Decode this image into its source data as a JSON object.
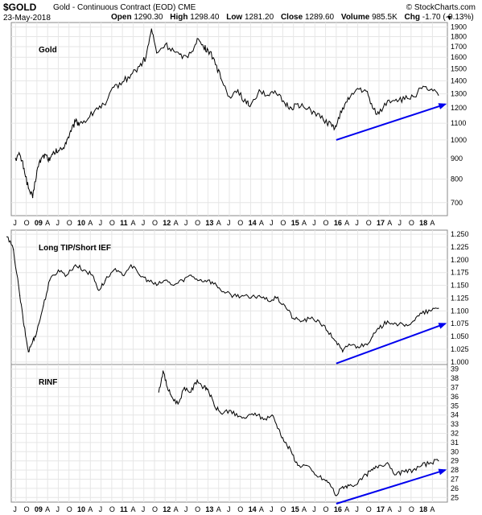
{
  "header": {
    "symbol": "$GOLD",
    "description": "Gold - Continuous Contract (EOD)",
    "exchange": "CME",
    "brand": "© StockCharts.com",
    "date": "23-May-2018",
    "open_label": "Open",
    "open": "1290.30",
    "high_label": "High",
    "high": "1298.40",
    "low_label": "Low",
    "low": "1281.20",
    "close_label": "Close",
    "close": "1289.60",
    "volume_label": "Volume",
    "volume": "985.5K",
    "chg_label": "Chg",
    "chg": "-1.70 (-0.13%)",
    "dropdown_icon": "triangle-down-icon"
  },
  "chart_data": [
    {
      "type": "line",
      "title": "Gold",
      "ylim": [
        650,
        1950
      ],
      "yticks": [
        700,
        800,
        900,
        1000,
        1100,
        1200,
        1300,
        1400,
        1500,
        1600,
        1700,
        1800,
        1900
      ],
      "ylog": true,
      "grid": true,
      "x": [
        2008.5,
        2008.6,
        2008.7,
        2008.8,
        2008.9,
        2009.0,
        2009.1,
        2009.2,
        2009.3,
        2009.4,
        2009.5,
        2009.6,
        2009.7,
        2009.8,
        2009.9,
        2010.0,
        2010.2,
        2010.4,
        2010.6,
        2010.8,
        2011.0,
        2011.2,
        2011.4,
        2011.55,
        2011.68,
        2011.8,
        2012.0,
        2012.2,
        2012.4,
        2012.6,
        2012.75,
        2012.9,
        2013.0,
        2013.15,
        2013.3,
        2013.5,
        2013.7,
        2013.9,
        2014.0,
        2014.2,
        2014.4,
        2014.6,
        2014.8,
        2014.95,
        2015.1,
        2015.3,
        2015.5,
        2015.7,
        2015.9,
        2016.0,
        2016.15,
        2016.3,
        2016.5,
        2016.7,
        2016.85,
        2017.0,
        2017.2,
        2017.4,
        2017.6,
        2017.8,
        2018.0,
        2018.2,
        2018.39
      ],
      "values": [
        900,
        920,
        850,
        760,
        720,
        840,
        900,
        920,
        890,
        930,
        940,
        950,
        1000,
        1050,
        1110,
        1100,
        1130,
        1200,
        1220,
        1350,
        1390,
        1450,
        1520,
        1600,
        1880,
        1640,
        1720,
        1660,
        1590,
        1640,
        1780,
        1690,
        1670,
        1580,
        1420,
        1280,
        1330,
        1230,
        1220,
        1330,
        1290,
        1300,
        1230,
        1200,
        1230,
        1190,
        1170,
        1120,
        1080,
        1080,
        1200,
        1260,
        1340,
        1320,
        1200,
        1160,
        1250,
        1260,
        1260,
        1280,
        1340,
        1330,
        1290
      ],
      "color": "#000000",
      "annotation": {
        "x0": 2016.0,
        "y0": 1000,
        "x1": 2018.55,
        "y1": 1225,
        "color": "#0000ee"
      }
    },
    {
      "type": "line",
      "title": "Long TIP/Short IEF",
      "ylim": [
        0.995,
        1.258
      ],
      "yticks": [
        "1.000",
        "1.025",
        "1.050",
        "1.075",
        "1.100",
        "1.125",
        "1.150",
        "1.175",
        "1.200",
        "1.225",
        "1.250"
      ],
      "grid": true,
      "x": [
        2008.3,
        2008.45,
        2008.6,
        2008.7,
        2008.8,
        2008.9,
        2009.0,
        2009.15,
        2009.3,
        2009.5,
        2009.7,
        2009.9,
        2010.1,
        2010.3,
        2010.45,
        2010.6,
        2010.8,
        2011.0,
        2011.2,
        2011.4,
        2011.6,
        2011.8,
        2012.0,
        2012.2,
        2012.4,
        2012.6,
        2012.8,
        2013.0,
        2013.2,
        2013.4,
        2013.6,
        2013.8,
        2014.0,
        2014.2,
        2014.4,
        2014.6,
        2014.8,
        2015.0,
        2015.2,
        2015.4,
        2015.6,
        2015.8,
        2016.0,
        2016.15,
        2016.3,
        2016.5,
        2016.7,
        2016.85,
        2017.0,
        2017.2,
        2017.4,
        2017.6,
        2017.8,
        2018.0,
        2018.2,
        2018.39
      ],
      "values": [
        1.245,
        1.22,
        1.13,
        1.07,
        1.02,
        1.04,
        1.06,
        1.11,
        1.16,
        1.18,
        1.17,
        1.19,
        1.18,
        1.17,
        1.14,
        1.16,
        1.18,
        1.17,
        1.19,
        1.17,
        1.16,
        1.15,
        1.16,
        1.15,
        1.16,
        1.17,
        1.16,
        1.16,
        1.15,
        1.135,
        1.13,
        1.13,
        1.125,
        1.13,
        1.12,
        1.125,
        1.11,
        1.085,
        1.08,
        1.085,
        1.08,
        1.06,
        1.04,
        1.02,
        1.035,
        1.03,
        1.035,
        1.05,
        1.065,
        1.08,
        1.075,
        1.07,
        1.08,
        1.095,
        1.1,
        1.105
      ],
      "color": "#000000",
      "annotation": {
        "x0": 2016.0,
        "y0": 0.997,
        "x1": 2018.55,
        "y1": 1.075,
        "color": "#0000ee"
      }
    },
    {
      "type": "line",
      "title": "RINF",
      "ylim": [
        24.5,
        39.5
      ],
      "yticks": [
        25,
        26,
        27,
        28,
        29,
        30,
        31,
        32,
        33,
        34,
        35,
        36,
        37,
        38,
        39
      ],
      "grid": true,
      "x": [
        2011.85,
        2011.95,
        2012.05,
        2012.15,
        2012.3,
        2012.45,
        2012.6,
        2012.75,
        2012.9,
        2013.0,
        2013.15,
        2013.3,
        2013.5,
        2013.7,
        2013.9,
        2014.1,
        2014.3,
        2014.5,
        2014.65,
        2014.8,
        2014.95,
        2015.1,
        2015.3,
        2015.5,
        2015.7,
        2015.85,
        2016.0,
        2016.15,
        2016.3,
        2016.5,
        2016.7,
        2016.85,
        2017.0,
        2017.2,
        2017.4,
        2017.6,
        2017.8,
        2018.0,
        2018.2,
        2018.39
      ],
      "values": [
        36.5,
        38.8,
        37.0,
        36.0,
        35.2,
        37.0,
        36.5,
        37.8,
        37.0,
        36.8,
        35.0,
        34.2,
        34.5,
        33.8,
        33.7,
        34.2,
        33.5,
        34.0,
        32.5,
        31.0,
        30.0,
        28.5,
        28.5,
        27.5,
        27.0,
        26.5,
        25.2,
        26.2,
        26.3,
        26.5,
        27.5,
        28.0,
        28.5,
        28.8,
        27.5,
        27.8,
        28.0,
        28.5,
        28.8,
        29.0
      ],
      "color": "#000000",
      "annotation": {
        "x0": 2016.0,
        "y0": 24.0,
        "x1": 2018.55,
        "y1": 28.0,
        "color": "#0000ee"
      }
    }
  ],
  "x_axis": {
    "range": [
      2008.4,
      2018.6
    ],
    "ticks": [
      {
        "x": 2008.5,
        "label": "J"
      },
      {
        "x": 2008.75,
        "label": "O"
      },
      {
        "x": 2009.0,
        "label": "09"
      },
      {
        "x": 2009.25,
        "label": "A"
      },
      {
        "x": 2009.5,
        "label": "J"
      },
      {
        "x": 2009.75,
        "label": "O"
      },
      {
        "x": 2010.0,
        "label": "10"
      },
      {
        "x": 2010.25,
        "label": "A"
      },
      {
        "x": 2010.5,
        "label": "J"
      },
      {
        "x": 2010.75,
        "label": "O"
      },
      {
        "x": 2011.0,
        "label": "11"
      },
      {
        "x": 2011.25,
        "label": "A"
      },
      {
        "x": 2011.5,
        "label": "J"
      },
      {
        "x": 2011.75,
        "label": "O"
      },
      {
        "x": 2012.0,
        "label": "12"
      },
      {
        "x": 2012.25,
        "label": "A"
      },
      {
        "x": 2012.5,
        "label": "J"
      },
      {
        "x": 2012.75,
        "label": "O"
      },
      {
        "x": 2013.0,
        "label": "13"
      },
      {
        "x": 2013.25,
        "label": "A"
      },
      {
        "x": 2013.5,
        "label": "J"
      },
      {
        "x": 2013.75,
        "label": "O"
      },
      {
        "x": 2014.0,
        "label": "14"
      },
      {
        "x": 2014.25,
        "label": "A"
      },
      {
        "x": 2014.5,
        "label": "J"
      },
      {
        "x": 2014.75,
        "label": "O"
      },
      {
        "x": 2015.0,
        "label": "15"
      },
      {
        "x": 2015.25,
        "label": "A"
      },
      {
        "x": 2015.5,
        "label": "J"
      },
      {
        "x": 2015.75,
        "label": "O"
      },
      {
        "x": 2016.0,
        "label": "16"
      },
      {
        "x": 2016.25,
        "label": "A"
      },
      {
        "x": 2016.5,
        "label": "J"
      },
      {
        "x": 2016.75,
        "label": "O"
      },
      {
        "x": 2017.0,
        "label": "17"
      },
      {
        "x": 2017.25,
        "label": "A"
      },
      {
        "x": 2017.5,
        "label": "J"
      },
      {
        "x": 2017.75,
        "label": "O"
      },
      {
        "x": 2018.0,
        "label": "18"
      },
      {
        "x": 2018.25,
        "label": "A"
      }
    ]
  }
}
